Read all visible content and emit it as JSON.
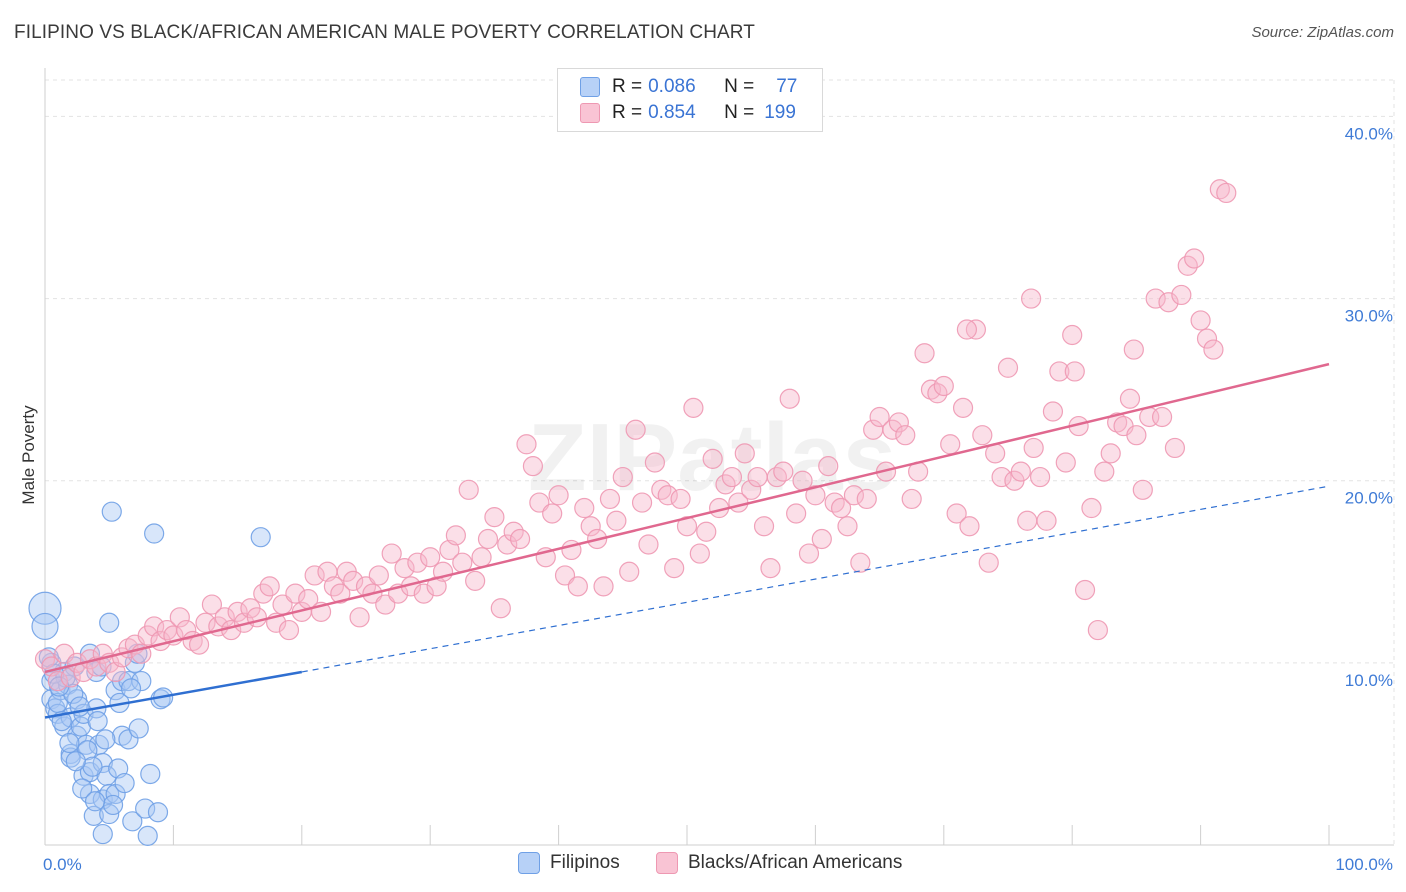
{
  "title": "FILIPINO VS BLACK/AFRICAN AMERICAN MALE POVERTY CORRELATION CHART",
  "source": "Source: ZipAtlas.com",
  "watermark": "ZIPatlas",
  "legend_top": {
    "rows": [
      {
        "r_label": "R =",
        "r_value": "0.086",
        "n_label": "N =",
        "n_value": "77"
      },
      {
        "r_label": "R =",
        "r_value": "0.854",
        "n_label": "N =",
        "n_value": "199"
      }
    ]
  },
  "legend_bottom": [
    "Filipinos",
    "Blacks/African Americans"
  ],
  "colors": {
    "filipino_fill": "#a9c8f5",
    "filipino_stroke": "#6fa0e6",
    "filipino_line": "#2f6fd1",
    "black_fill": "#f7b8cc",
    "black_stroke": "#ee98b2",
    "black_line": "#e0688f",
    "grid": "#e3e3e3",
    "tick_text": "#3f7bd6"
  },
  "chart_data": {
    "type": "scatter",
    "title": "FILIPINO VS BLACK/AFRICAN AMERICAN MALE POVERTY CORRELATION CHART",
    "xlabel": "",
    "ylabel": "Male Poverty",
    "xlim": [
      0,
      100
    ],
    "ylim": [
      0,
      42
    ],
    "x_tick_labels": [
      "0.0%",
      "100.0%"
    ],
    "y_ticks": [
      10,
      20,
      30,
      40
    ],
    "y_tick_labels": [
      "10.0%",
      "20.0%",
      "30.0%",
      "40.0%"
    ],
    "grid": true,
    "series": [
      {
        "name": "Filipinos",
        "r": 0.086,
        "n": 77,
        "trend_solid": [
          [
            0,
            7.0
          ],
          [
            20,
            9.5
          ]
        ],
        "trend_dashed": [
          [
            20,
            9.5
          ],
          [
            100,
            19.7
          ]
        ],
        "points": [
          [
            0,
            13.0
          ],
          [
            0,
            12.0
          ],
          [
            0.5,
            10.0
          ],
          [
            0.5,
            9.0
          ],
          [
            0.5,
            8.0
          ],
          [
            0.8,
            7.5
          ],
          [
            1,
            7.2
          ],
          [
            1.2,
            8.5
          ],
          [
            1.5,
            9.5
          ],
          [
            1.5,
            6.5
          ],
          [
            1.8,
            8.8
          ],
          [
            2,
            7.0
          ],
          [
            2,
            5.0
          ],
          [
            2,
            4.8
          ],
          [
            2.3,
            9.8
          ],
          [
            2.5,
            8.0
          ],
          [
            2.5,
            6.0
          ],
          [
            2.8,
            6.5
          ],
          [
            3,
            3.8
          ],
          [
            3,
            7.2
          ],
          [
            3.2,
            5.5
          ],
          [
            3.5,
            4.0
          ],
          [
            3.5,
            2.8
          ],
          [
            3.5,
            10.5
          ],
          [
            3.8,
            1.6
          ],
          [
            4,
            9.5
          ],
          [
            4,
            7.5
          ],
          [
            4.2,
            5.5
          ],
          [
            4.5,
            0.6
          ],
          [
            4.5,
            4.5
          ],
          [
            4.5,
            2.5
          ],
          [
            4.8,
            3.8
          ],
          [
            5,
            12.2
          ],
          [
            5,
            1.7
          ],
          [
            5,
            2.8
          ],
          [
            5.2,
            18.3
          ],
          [
            5.5,
            8.5
          ],
          [
            5.5,
            2.8
          ],
          [
            5.8,
            7.8
          ],
          [
            6,
            9.0
          ],
          [
            6,
            6.0
          ],
          [
            6.5,
            5.8
          ],
          [
            6.5,
            9.0
          ],
          [
            6.8,
            1.3
          ],
          [
            7,
            10.0
          ],
          [
            7.2,
            10.5
          ],
          [
            7.5,
            9.0
          ],
          [
            7.8,
            2.0
          ],
          [
            8,
            0.5
          ],
          [
            8.2,
            3.9
          ],
          [
            8.5,
            17.1
          ],
          [
            8.8,
            1.8
          ],
          [
            9,
            8.0
          ],
          [
            9.2,
            8.1
          ],
          [
            16.8,
            16.9
          ],
          [
            0.3,
            10.3
          ],
          [
            1,
            7.8
          ],
          [
            1.3,
            6.8
          ],
          [
            1.6,
            9.2
          ],
          [
            2.2,
            8.3
          ],
          [
            2.7,
            7.6
          ],
          [
            3.3,
            5.2
          ],
          [
            3.7,
            4.3
          ],
          [
            4.1,
            6.8
          ],
          [
            4.4,
            9.8
          ],
          [
            4.7,
            5.8
          ],
          [
            5.3,
            2.2
          ],
          [
            5.7,
            4.2
          ],
          [
            6.2,
            3.4
          ],
          [
            0.7,
            9.4
          ],
          [
            1.1,
            8.7
          ],
          [
            1.9,
            5.6
          ],
          [
            2.4,
            4.6
          ],
          [
            2.9,
            3.1
          ],
          [
            3.9,
            2.4
          ],
          [
            6.7,
            8.6
          ],
          [
            7.3,
            6.4
          ]
        ]
      },
      {
        "name": "Blacks/African Americans",
        "r": 0.854,
        "n": 199,
        "trend_solid": [
          [
            0,
            9.5
          ],
          [
            100,
            26.4
          ]
        ],
        "points": [
          [
            0,
            10.2
          ],
          [
            0.5,
            9.8
          ],
          [
            1,
            9.0
          ],
          [
            1.5,
            10.5
          ],
          [
            2,
            9.2
          ],
          [
            2.5,
            10.0
          ],
          [
            3,
            9.5
          ],
          [
            3.5,
            10.2
          ],
          [
            4,
            9.8
          ],
          [
            4.5,
            10.5
          ],
          [
            5,
            10.0
          ],
          [
            5.5,
            9.5
          ],
          [
            6,
            10.3
          ],
          [
            6.5,
            10.8
          ],
          [
            7,
            11.0
          ],
          [
            7.5,
            10.5
          ],
          [
            8,
            11.5
          ],
          [
            8.5,
            12.0
          ],
          [
            9,
            11.2
          ],
          [
            9.5,
            11.8
          ],
          [
            10,
            11.5
          ],
          [
            10.5,
            12.5
          ],
          [
            11,
            11.8
          ],
          [
            11.5,
            11.2
          ],
          [
            12,
            11.0
          ],
          [
            12.5,
            12.2
          ],
          [
            13,
            13.2
          ],
          [
            13.5,
            12.0
          ],
          [
            14,
            12.5
          ],
          [
            14.5,
            11.8
          ],
          [
            15,
            12.8
          ],
          [
            15.5,
            12.2
          ],
          [
            16,
            13.0
          ],
          [
            16.5,
            12.5
          ],
          [
            17,
            13.8
          ],
          [
            17.5,
            14.2
          ],
          [
            18,
            12.2
          ],
          [
            18.5,
            13.2
          ],
          [
            19,
            11.8
          ],
          [
            19.5,
            13.8
          ],
          [
            20,
            12.8
          ],
          [
            20.5,
            13.5
          ],
          [
            21,
            14.8
          ],
          [
            21.5,
            12.8
          ],
          [
            22,
            15.0
          ],
          [
            22.5,
            14.2
          ],
          [
            23,
            13.8
          ],
          [
            23.5,
            15.0
          ],
          [
            24,
            14.5
          ],
          [
            24.5,
            12.5
          ],
          [
            25,
            14.2
          ],
          [
            25.5,
            13.8
          ],
          [
            26,
            14.8
          ],
          [
            26.5,
            13.2
          ],
          [
            27,
            16.0
          ],
          [
            27.5,
            13.8
          ],
          [
            28,
            15.2
          ],
          [
            28.5,
            14.2
          ],
          [
            29,
            15.5
          ],
          [
            29.5,
            13.8
          ],
          [
            30,
            15.8
          ],
          [
            30.5,
            14.2
          ],
          [
            31,
            15.0
          ],
          [
            31.5,
            16.2
          ],
          [
            32,
            17.0
          ],
          [
            32.5,
            15.5
          ],
          [
            33,
            19.5
          ],
          [
            33.5,
            14.5
          ],
          [
            34,
            15.8
          ],
          [
            34.5,
            16.8
          ],
          [
            35,
            18.0
          ],
          [
            35.5,
            13.0
          ],
          [
            36,
            16.5
          ],
          [
            36.5,
            17.2
          ],
          [
            37,
            16.8
          ],
          [
            37.5,
            22.0
          ],
          [
            38,
            20.8
          ],
          [
            38.5,
            18.8
          ],
          [
            39,
            15.8
          ],
          [
            39.5,
            18.2
          ],
          [
            40,
            19.2
          ],
          [
            40.5,
            14.8
          ],
          [
            41,
            16.2
          ],
          [
            41.5,
            14.2
          ],
          [
            42,
            18.5
          ],
          [
            42.5,
            17.5
          ],
          [
            43,
            16.8
          ],
          [
            43.5,
            14.2
          ],
          [
            44,
            19.0
          ],
          [
            44.5,
            17.8
          ],
          [
            45,
            20.2
          ],
          [
            45.5,
            15.0
          ],
          [
            46,
            22.8
          ],
          [
            46.5,
            18.8
          ],
          [
            47,
            16.5
          ],
          [
            47.5,
            21.0
          ],
          [
            48,
            19.5
          ],
          [
            48.5,
            19.2
          ],
          [
            49,
            15.2
          ],
          [
            49.5,
            19.0
          ],
          [
            50,
            17.5
          ],
          [
            50.5,
            24.0
          ],
          [
            51,
            16.0
          ],
          [
            51.5,
            17.2
          ],
          [
            52,
            21.2
          ],
          [
            52.5,
            18.5
          ],
          [
            53,
            19.8
          ],
          [
            53.5,
            20.2
          ],
          [
            54,
            18.8
          ],
          [
            54.5,
            21.5
          ],
          [
            55,
            19.5
          ],
          [
            55.5,
            20.2
          ],
          [
            56,
            17.5
          ],
          [
            56.5,
            15.2
          ],
          [
            57,
            20.2
          ],
          [
            57.5,
            20.5
          ],
          [
            58,
            24.5
          ],
          [
            58.5,
            18.2
          ],
          [
            59,
            20.0
          ],
          [
            59.5,
            16.0
          ],
          [
            60,
            19.2
          ],
          [
            60.5,
            16.8
          ],
          [
            61,
            20.8
          ],
          [
            61.5,
            18.8
          ],
          [
            62,
            18.5
          ],
          [
            62.5,
            17.5
          ],
          [
            63,
            19.2
          ],
          [
            63.5,
            15.5
          ],
          [
            64,
            19.0
          ],
          [
            64.5,
            22.8
          ],
          [
            65,
            23.5
          ],
          [
            65.5,
            20.5
          ],
          [
            66,
            22.8
          ],
          [
            66.5,
            23.2
          ],
          [
            67,
            22.5
          ],
          [
            67.5,
            19.0
          ],
          [
            68,
            20.5
          ],
          [
            68.5,
            27.0
          ],
          [
            69,
            25.0
          ],
          [
            69.5,
            24.8
          ],
          [
            70,
            25.2
          ],
          [
            70.5,
            22.0
          ],
          [
            71,
            18.2
          ],
          [
            71.5,
            24.0
          ],
          [
            72,
            17.5
          ],
          [
            72.5,
            28.3
          ],
          [
            73,
            22.5
          ],
          [
            73.5,
            15.5
          ],
          [
            74,
            21.5
          ],
          [
            74.5,
            20.2
          ],
          [
            75,
            26.2
          ],
          [
            75.5,
            20.0
          ],
          [
            76,
            20.5
          ],
          [
            76.5,
            17.8
          ],
          [
            77,
            21.8
          ],
          [
            77.5,
            20.2
          ],
          [
            78,
            17.8
          ],
          [
            78.5,
            23.8
          ],
          [
            79,
            26.0
          ],
          [
            79.5,
            21.0
          ],
          [
            80,
            28.0
          ],
          [
            80.5,
            23.0
          ],
          [
            81,
            14.0
          ],
          [
            81.5,
            18.5
          ],
          [
            82,
            11.8
          ],
          [
            82.5,
            20.5
          ],
          [
            83,
            21.5
          ],
          [
            83.5,
            23.2
          ],
          [
            84,
            23.0
          ],
          [
            84.5,
            24.5
          ],
          [
            85,
            22.5
          ],
          [
            85.5,
            19.5
          ],
          [
            86,
            23.5
          ],
          [
            86.5,
            30.0
          ],
          [
            87,
            23.5
          ],
          [
            87.5,
            29.8
          ],
          [
            88,
            21.8
          ],
          [
            88.5,
            30.2
          ],
          [
            89,
            31.8
          ],
          [
            89.5,
            32.2
          ],
          [
            90,
            28.8
          ],
          [
            90.5,
            27.8
          ],
          [
            91,
            27.2
          ],
          [
            91.5,
            36.0
          ],
          [
            92,
            35.8
          ],
          [
            71.8,
            28.3
          ],
          [
            76.8,
            30.0
          ],
          [
            80.2,
            26.0
          ],
          [
            84.8,
            27.2
          ]
        ]
      }
    ]
  }
}
